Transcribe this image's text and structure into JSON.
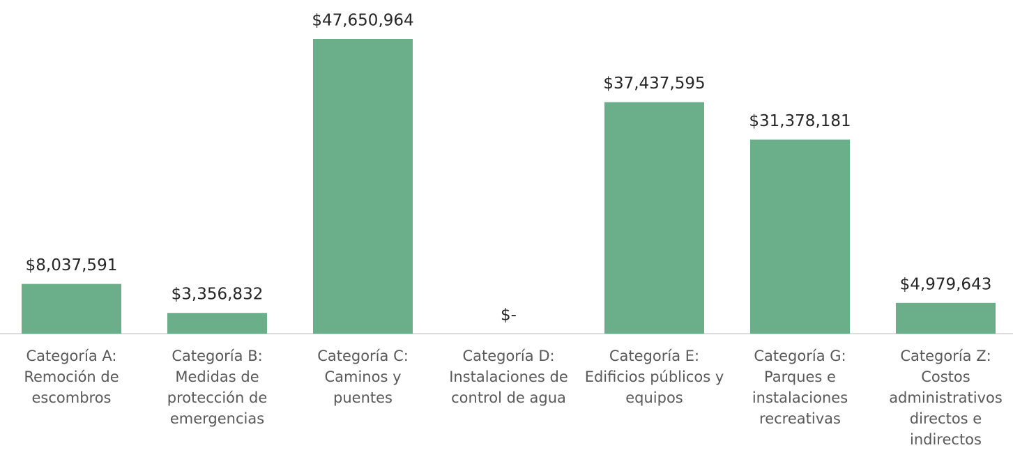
{
  "chart_data": {
    "type": "bar",
    "categories": [
      "Categoría A: Remoción de escombros",
      "Categoría B: Medidas de protección de emergencias",
      "Categoría C: Caminos y puentes",
      "Categoría D: Instalaciones de control de agua",
      "Categoría E: Edificios públicos y equipos",
      "Categoría G: Parques e instalaciones recreativas",
      "Categoría Z: Costos administrativos directos e indirectos"
    ],
    "values": [
      8037591,
      3356832,
      47650964,
      0,
      37437595,
      31378181,
      4979643
    ],
    "value_labels": [
      "$8,037,591",
      "$3,356,832",
      "$47,650,964",
      "$-",
      "$37,437,595",
      "$31,378,181",
      "$4,979,643"
    ],
    "color": "#6aae8a"
  }
}
